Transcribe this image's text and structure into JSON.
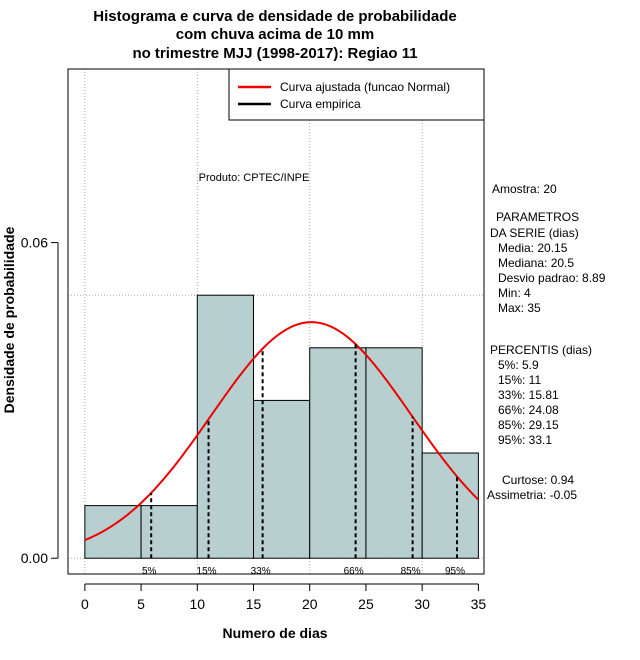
{
  "title_lines": [
    "Histograma e curva de densidade de probabilidade",
    "com chuva acima de 10 mm",
    "no trimestre MJJ (1998-2017): Regiao 11"
  ],
  "product_label": "Produto: CPTEC/INPE",
  "colors": {
    "bar_fill": "#b8cfcf",
    "fitted_curve": "#ee0000",
    "grid": "#aaaaaa"
  },
  "chart_data": {
    "type": "bar",
    "xlabel": "Numero de dias",
    "ylabel": "Densidade de probabilidade",
    "xlim": [
      -1.5,
      35.5
    ],
    "ylim": [
      -0.003,
      0.093
    ],
    "x_ticks": [
      0,
      5,
      10,
      15,
      20,
      25,
      30,
      35
    ],
    "y_ticks": [
      0.0,
      0.06
    ],
    "y_tick_labels": [
      "0.00",
      "0.06"
    ],
    "grid": true,
    "bins": [
      {
        "from": 0,
        "to": 5,
        "density": 0.01
      },
      {
        "from": 5,
        "to": 10,
        "density": 0.01
      },
      {
        "from": 10,
        "to": 15,
        "density": 0.05
      },
      {
        "from": 15,
        "to": 20,
        "density": 0.03
      },
      {
        "from": 20,
        "to": 25,
        "density": 0.04
      },
      {
        "from": 25,
        "to": 30,
        "density": 0.04
      },
      {
        "from": 30,
        "to": 35,
        "density": 0.02
      }
    ],
    "fitted_normal": {
      "mean": 20.15,
      "sd": 8.89,
      "x_from": 0,
      "x_to": 35
    },
    "percentiles": [
      {
        "label": "5%",
        "x": 5.9
      },
      {
        "label": "15%",
        "x": 11
      },
      {
        "label": "33%",
        "x": 15.81
      },
      {
        "label": "66%",
        "x": 24.08
      },
      {
        "label": "85%",
        "x": 29.15
      },
      {
        "label": "95%",
        "x": 33.1
      }
    ],
    "legend": {
      "position": "top-right",
      "entries": [
        {
          "name": "Curva ajustada (funcao Normal)",
          "color": "#ee0000"
        },
        {
          "name": "Curva empirica",
          "color": "#000000"
        }
      ]
    }
  },
  "stats_panel": {
    "sample": "Amostra: 20",
    "params_title_1": "PARAMETROS",
    "params_title_2": "DA SERIE (dias)",
    "media": "Media: 20.15",
    "mediana": "Mediana: 20.5",
    "desvio": "Desvio padrao: 8.89",
    "min": "Min: 4",
    "max": "Max: 35",
    "pct_title": "PERCENTIS (dias)",
    "p5": "5%: 5.9",
    "p15": "15%: 11",
    "p33": "33%: 15.81",
    "p66": "66%: 24.08",
    "p85": "85%: 29.15",
    "p95": "95%: 33.1",
    "curtose": "Curtose: 0.94",
    "assimetria": "Assimetria: -0.05"
  }
}
